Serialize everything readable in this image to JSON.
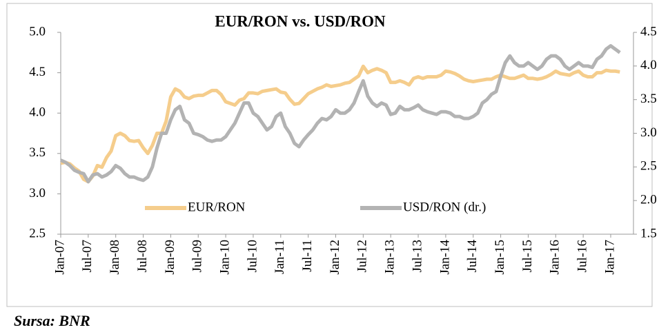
{
  "chart_data": {
    "type": "line",
    "title": "EUR/RON vs. USD/RON",
    "source": "Sursa: BNR",
    "categories": [
      "Jan-07",
      null,
      null,
      null,
      null,
      null,
      "Jul-07",
      null,
      null,
      null,
      null,
      null,
      "Jan-08",
      null,
      null,
      null,
      null,
      null,
      "Jul-08",
      null,
      null,
      null,
      null,
      null,
      "Jan-09",
      null,
      null,
      null,
      null,
      null,
      "Jul-09",
      null,
      null,
      null,
      null,
      null,
      "Jan-10",
      null,
      null,
      null,
      null,
      null,
      "Jul-10",
      null,
      null,
      null,
      null,
      null,
      "Jan-11",
      null,
      null,
      null,
      null,
      null,
      "Jul-11",
      null,
      null,
      null,
      null,
      null,
      "Jan-12",
      null,
      null,
      null,
      null,
      null,
      "Jul-12",
      null,
      null,
      null,
      null,
      null,
      "Jan-13",
      null,
      null,
      null,
      null,
      null,
      "Jul-13",
      null,
      null,
      null,
      null,
      null,
      "Jan-14",
      null,
      null,
      null,
      null,
      null,
      "Jul-14",
      null,
      null,
      null,
      null,
      null,
      "Jan-15",
      null,
      null,
      null,
      null,
      null,
      "Jul-15",
      null,
      null,
      null,
      null,
      null,
      "Jan-16",
      null,
      null,
      null,
      null,
      null,
      "Jul-16",
      null,
      null,
      null,
      null,
      null,
      "Jan-17",
      null,
      null
    ],
    "series": [
      {
        "name": "EUR/RON",
        "color": "#f5cd8c",
        "axis": "y",
        "values": [
          3.38,
          3.39,
          3.37,
          3.32,
          3.28,
          3.18,
          3.15,
          3.22,
          3.35,
          3.33,
          3.45,
          3.53,
          3.72,
          3.75,
          3.72,
          3.66,
          3.65,
          3.66,
          3.57,
          3.5,
          3.6,
          3.75,
          3.75,
          3.9,
          4.2,
          4.3,
          4.27,
          4.2,
          4.18,
          4.21,
          4.22,
          4.22,
          4.25,
          4.28,
          4.28,
          4.23,
          4.14,
          4.12,
          4.1,
          4.16,
          4.18,
          4.25,
          4.25,
          4.24,
          4.27,
          4.28,
          4.29,
          4.3,
          4.26,
          4.25,
          4.17,
          4.11,
          4.12,
          4.18,
          4.24,
          4.27,
          4.3,
          4.32,
          4.35,
          4.33,
          4.34,
          4.35,
          4.37,
          4.38,
          4.42,
          4.46,
          4.58,
          4.5,
          4.53,
          4.55,
          4.53,
          4.5,
          4.38,
          4.38,
          4.4,
          4.38,
          4.35,
          4.43,
          4.45,
          4.43,
          4.45,
          4.45,
          4.45,
          4.47,
          4.52,
          4.51,
          4.49,
          4.46,
          4.42,
          4.4,
          4.39,
          4.4,
          4.41,
          4.42,
          4.42,
          4.45,
          4.47,
          4.45,
          4.43,
          4.43,
          4.45,
          4.47,
          4.43,
          4.43,
          4.42,
          4.43,
          4.45,
          4.48,
          4.52,
          4.49,
          4.48,
          4.47,
          4.5,
          4.52,
          4.47,
          4.45,
          4.45,
          4.5,
          4.5,
          4.53,
          4.52,
          4.52,
          4.51
        ]
      },
      {
        "name": "USD/RON (dr.)",
        "color": "#b3b3b3",
        "axis": "y2",
        "values": [
          2.6,
          2.57,
          2.52,
          2.45,
          2.42,
          2.4,
          2.28,
          2.38,
          2.4,
          2.35,
          2.38,
          2.43,
          2.52,
          2.48,
          2.4,
          2.35,
          2.35,
          2.32,
          2.3,
          2.35,
          2.5,
          2.78,
          3.0,
          3.0,
          3.2,
          3.35,
          3.4,
          3.2,
          3.15,
          3.0,
          2.98,
          2.95,
          2.9,
          2.88,
          2.9,
          2.9,
          2.95,
          3.05,
          3.15,
          3.3,
          3.45,
          3.45,
          3.3,
          3.25,
          3.15,
          3.05,
          3.1,
          3.25,
          3.3,
          3.1,
          3.0,
          2.85,
          2.8,
          2.9,
          2.98,
          3.05,
          3.15,
          3.22,
          3.2,
          3.25,
          3.35,
          3.3,
          3.3,
          3.35,
          3.45,
          3.62,
          3.78,
          3.55,
          3.45,
          3.4,
          3.45,
          3.42,
          3.28,
          3.3,
          3.4,
          3.35,
          3.35,
          3.38,
          3.42,
          3.35,
          3.32,
          3.3,
          3.28,
          3.32,
          3.32,
          3.3,
          3.25,
          3.25,
          3.22,
          3.22,
          3.25,
          3.3,
          3.45,
          3.5,
          3.58,
          3.62,
          3.85,
          4.05,
          4.15,
          4.05,
          4.0,
          4.0,
          4.05,
          4.0,
          3.95,
          4.0,
          4.1,
          4.15,
          4.15,
          4.1,
          4.0,
          3.95,
          4.0,
          4.05,
          4.0,
          4.0,
          3.98,
          4.1,
          4.15,
          4.25,
          4.3,
          4.25,
          4.2
        ]
      }
    ],
    "ylim": [
      2.5,
      5
    ],
    "yticks": [
      {
        "value": 2.5,
        "label": "2.5"
      },
      {
        "value": 3,
        "label": "3.0"
      },
      3.5,
      {
        "value": 4,
        "label": "4.0"
      },
      4.5,
      {
        "value": 5,
        "label": "5.0"
      }
    ],
    "y2lim": [
      1.5,
      4.5
    ],
    "y2ticks": [
      1.5,
      {
        "value": 2,
        "label": "2.0"
      },
      2.5,
      {
        "value": 3,
        "label": "3.0"
      },
      3.5,
      {
        "value": 4,
        "label": "4.0"
      },
      4.5
    ],
    "grid": false,
    "legend": "bottom"
  }
}
